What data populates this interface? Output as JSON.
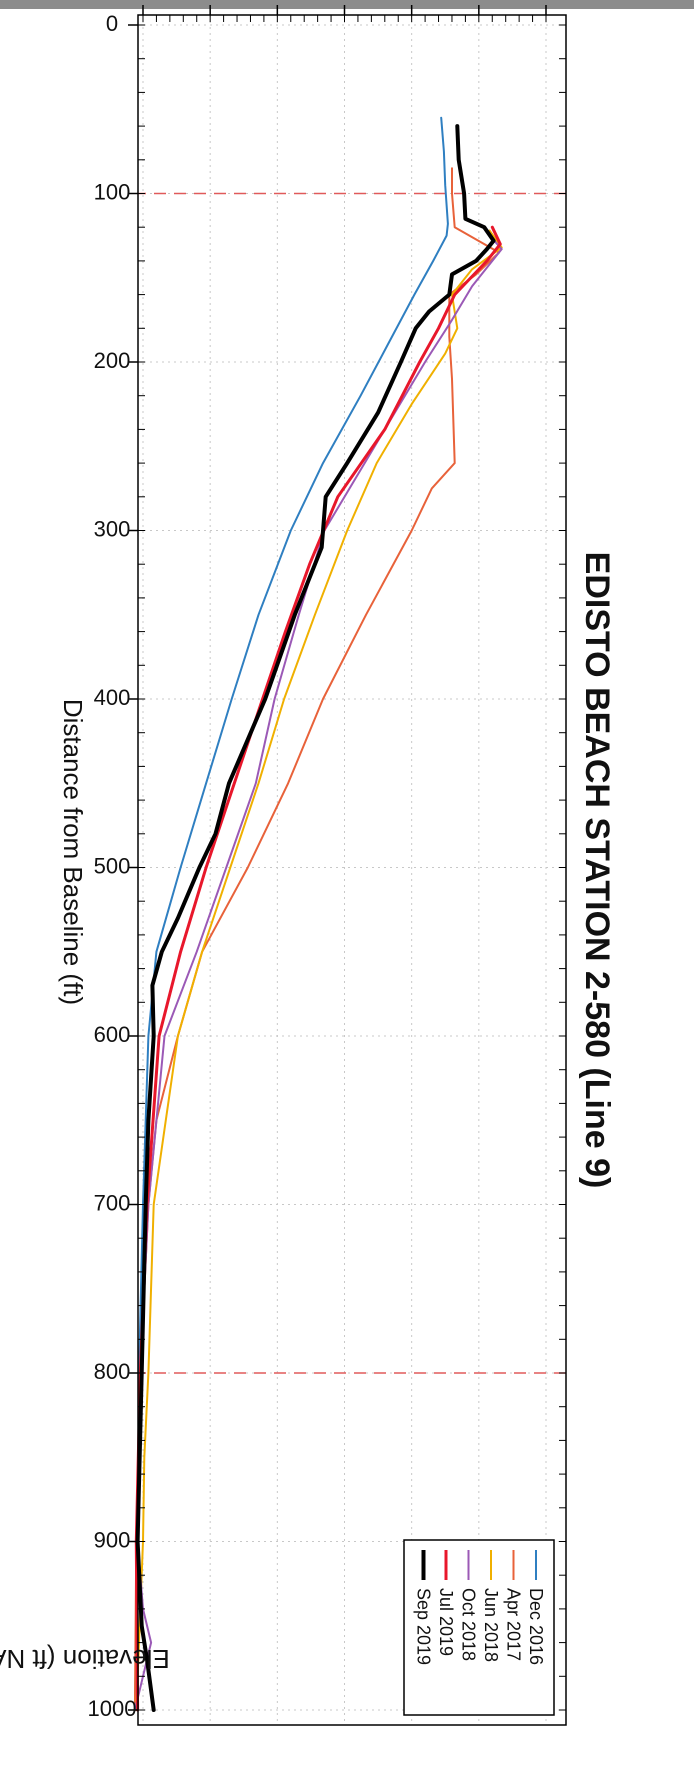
{
  "chart_data": {
    "type": "line",
    "title": "EDISTO BEACH STATION 2-580 (Line 9)",
    "xlabel": "Distance from Baseline (ft)",
    "ylabel": "Elevation (ft NAVD)",
    "xlim": [
      0,
      1000
    ],
    "ylim": [
      -15,
      15
    ],
    "xticks": [
      "0",
      "100",
      "200",
      "300",
      "400",
      "500",
      "600",
      "700",
      "800",
      "900",
      "1000"
    ],
    "yticks": [
      "-15",
      "-10",
      "-5",
      "0",
      "5",
      "10",
      "15"
    ],
    "grid": true,
    "reference_lines_x": [
      100,
      800
    ],
    "legend_position": "top-right",
    "series": [
      {
        "name": "Dec 2016",
        "color": "#2f7fc1",
        "width": 2,
        "x": [
          55,
          75,
          95,
          118,
          125,
          140,
          160,
          190,
          220,
          260,
          300,
          350,
          400,
          450,
          500,
          550,
          600,
          700,
          800,
          900,
          950,
          1000
        ],
        "y": [
          7.2,
          7.4,
          7.5,
          7.7,
          7.6,
          6.6,
          5.2,
          3.2,
          1.2,
          -1.6,
          -4.0,
          -6.4,
          -8.4,
          -10.3,
          -12.2,
          -14.0,
          -14.6,
          -15.0,
          -15.3,
          -15.4,
          -15.5,
          -15.6
        ]
      },
      {
        "name": "Apr 2017",
        "color": "#e8623a",
        "width": 2,
        "x": [
          85,
          100,
          120,
          135,
          148,
          160,
          185,
          210,
          260,
          275,
          300,
          350,
          400,
          450,
          500,
          550,
          600,
          650,
          700,
          800,
          900,
          1000
        ],
        "y": [
          8.0,
          8.0,
          8.2,
          11.5,
          9.8,
          7.8,
          7.8,
          8.0,
          8.2,
          6.5,
          5.0,
          1.6,
          -1.6,
          -4.2,
          -7.2,
          -10.6,
          -12.4,
          -14.0,
          -14.6,
          -15.2,
          -15.5,
          -15.6
        ]
      },
      {
        "name": "Jun 2018",
        "color": "#f0b000",
        "width": 2,
        "x": [
          122,
          132,
          145,
          160,
          180,
          195,
          225,
          260,
          300,
          350,
          400,
          450,
          500,
          550,
          600,
          700,
          800,
          850,
          900,
          1000
        ],
        "y": [
          10.8,
          11.7,
          9.5,
          8.0,
          8.4,
          7.5,
          5.0,
          2.4,
          0.2,
          -2.2,
          -4.5,
          -6.4,
          -8.5,
          -10.6,
          -12.4,
          -14.2,
          -14.6,
          -14.9,
          -15.0,
          -15.5
        ]
      },
      {
        "name": "Oct 2018",
        "color": "#9b59b6",
        "width": 2,
        "x": [
          125,
          133,
          140,
          155,
          175,
          200,
          240,
          300,
          350,
          400,
          450,
          500,
          550,
          600,
          700,
          800,
          900,
          940,
          960,
          1000
        ],
        "y": [
          10.8,
          11.7,
          11.0,
          9.5,
          8.0,
          6.0,
          3.0,
          -1.5,
          -3.4,
          -5.2,
          -6.6,
          -8.8,
          -11.0,
          -13.4,
          -14.6,
          -15.2,
          -15.4,
          -15.0,
          -14.4,
          -15.6
        ]
      },
      {
        "name": "Jul 2019",
        "color": "#e8172b",
        "width": 3,
        "x": [
          120,
          130,
          140,
          160,
          180,
          200,
          240,
          280,
          320,
          360,
          400,
          450,
          500,
          550,
          600,
          700,
          800,
          900,
          1000
        ],
        "y": [
          11.0,
          11.6,
          10.6,
          8.2,
          7.0,
          5.6,
          3.0,
          -0.5,
          -2.6,
          -4.4,
          -6.1,
          -8.2,
          -10.3,
          -12.2,
          -13.8,
          -14.7,
          -15.2,
          -15.5,
          -15.4
        ]
      },
      {
        "name": "Sep 2019",
        "color": "#000000",
        "width": 4,
        "x": [
          60,
          80,
          100,
          115,
          120,
          128,
          133,
          140,
          148,
          160,
          170,
          180,
          200,
          230,
          260,
          280,
          310,
          350,
          400,
          450,
          480,
          500,
          530,
          550,
          570,
          600,
          650,
          700,
          800,
          900,
          950,
          970,
          1000
        ],
        "y": [
          8.4,
          8.5,
          8.9,
          9.0,
          10.4,
          11.1,
          10.6,
          9.8,
          8.0,
          7.8,
          6.3,
          5.3,
          4.2,
          2.5,
          0.2,
          -1.4,
          -1.7,
          -3.7,
          -5.9,
          -8.6,
          -9.6,
          -10.8,
          -12.4,
          -13.6,
          -14.3,
          -14.2,
          -14.6,
          -14.8,
          -15.1,
          -15.4,
          -15.1,
          -14.7,
          -14.2
        ]
      }
    ]
  }
}
